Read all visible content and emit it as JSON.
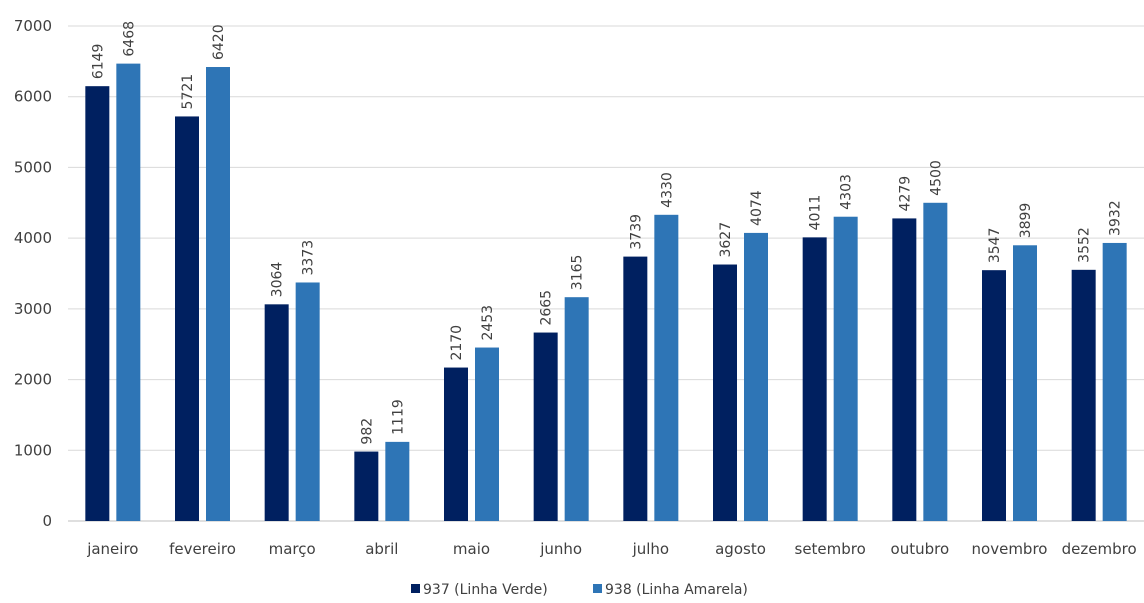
{
  "chart_data": {
    "type": "bar",
    "title": "",
    "xlabel": "",
    "ylabel": "",
    "ylim": [
      0,
      7000
    ],
    "yticks": [
      0,
      1000,
      2000,
      3000,
      4000,
      5000,
      6000,
      7000
    ],
    "grid": true,
    "legend_position": "bottom",
    "categories": [
      "janeiro",
      "fevereiro",
      "março",
      "abril",
      "maio",
      "junho",
      "julho",
      "agosto",
      "setembro",
      "outubro",
      "novembro",
      "dezembro"
    ],
    "series": [
      {
        "name": "937 (Linha Verde)",
        "color": "#002060",
        "values": [
          6149,
          5721,
          3064,
          982,
          2170,
          2665,
          3739,
          3627,
          4011,
          4279,
          3547,
          3552
        ]
      },
      {
        "name": "938 (Linha Amarela)",
        "color": "#2E75B6",
        "values": [
          6468,
          6420,
          3373,
          1119,
          2453,
          3165,
          4330,
          4074,
          4303,
          4500,
          3899,
          3932
        ]
      }
    ]
  }
}
